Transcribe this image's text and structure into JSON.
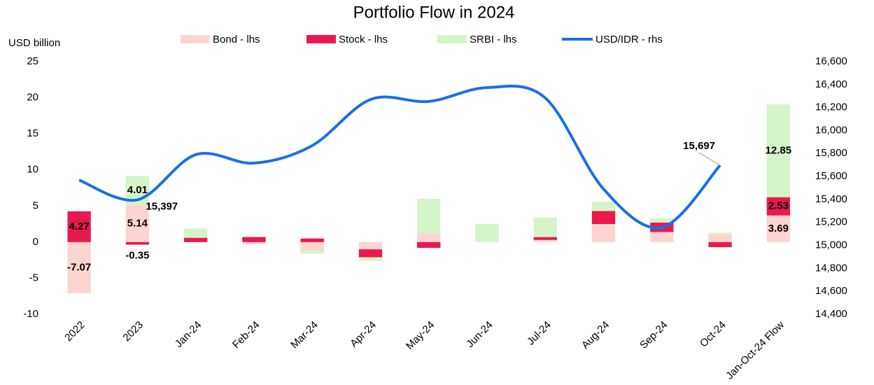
{
  "chart_data": {
    "type": "bar_line",
    "title": "Portfolio Flow in 2024",
    "y_label": "USD billion",
    "categories": [
      "2022",
      "2023",
      "Jan-24",
      "Feb-24",
      "Mar-24",
      "Apr-24",
      "May-24",
      "Jun-24",
      "Jul-24",
      "Aug-24",
      "Sep-24",
      "Oct-24",
      "Jan-Oct-24 Flow"
    ],
    "series": [
      {
        "name": "Bond - lhs",
        "type": "bar",
        "color": "#fdd5d0",
        "values": [
          -7.07,
          5.14,
          0,
          -0.3,
          -1.2,
          -1.0,
          1.2,
          0,
          0.3,
          2.5,
          1.4,
          1.0,
          3.69
        ],
        "value_labels": [
          "-7.07",
          "5.14",
          null,
          null,
          null,
          null,
          null,
          null,
          null,
          null,
          null,
          null,
          "3.69"
        ]
      },
      {
        "name": "Stock - lhs",
        "type": "bar",
        "color": "#e8194d",
        "values": [
          4.27,
          -0.35,
          0.6,
          0.7,
          0.5,
          -1.1,
          -0.8,
          0,
          0.4,
          1.8,
          1.3,
          -0.7,
          2.53
        ],
        "value_labels": [
          "4.27",
          "-0.35",
          null,
          null,
          null,
          null,
          null,
          null,
          null,
          null,
          null,
          null,
          "2.53"
        ]
      },
      {
        "name": "SRBI - lhs",
        "type": "bar",
        "color": "#d4f5c8",
        "values": [
          0,
          4.01,
          1.3,
          0.1,
          -0.4,
          -0.5,
          4.8,
          2.5,
          2.7,
          1.3,
          0.6,
          0.3,
          12.85
        ],
        "value_labels": [
          null,
          "4.01",
          null,
          null,
          null,
          null,
          null,
          null,
          null,
          null,
          null,
          null,
          "12.85"
        ]
      },
      {
        "name": "USD/IDR - rhs",
        "type": "line",
        "axis": "y2",
        "color": "#1a6fe8",
        "values": [
          15568,
          15397,
          15790,
          15716,
          15869,
          16270,
          16253,
          16374,
          16283,
          15490,
          15156,
          15697,
          null
        ],
        "value_labels": [
          null,
          "15,397",
          null,
          null,
          null,
          null,
          null,
          null,
          null,
          null,
          null,
          "15,697",
          null
        ]
      }
    ],
    "ylim": [
      -10,
      25
    ],
    "yticks": [
      -10,
      -5,
      0,
      5,
      10,
      15,
      20,
      25
    ],
    "y2lim": [
      14400,
      16600
    ],
    "y2ticks": [
      {
        "value": 14400,
        "label": "14,400"
      },
      {
        "value": 14600,
        "label": "14,600"
      },
      {
        "value": 14800,
        "label": "14,800"
      },
      {
        "value": 15000,
        "label": "15,000"
      },
      {
        "value": 15200,
        "label": "15,200"
      },
      {
        "value": 15400,
        "label": "15,400"
      },
      {
        "value": 15600,
        "label": "15,600"
      },
      {
        "value": 15800,
        "label": "15,800"
      },
      {
        "value": 16000,
        "label": "16,000"
      },
      {
        "value": 16200,
        "label": "16,200"
      },
      {
        "value": 16400,
        "label": "16,400"
      },
      {
        "value": 16600,
        "label": "16,600"
      }
    ],
    "legend": "top"
  }
}
